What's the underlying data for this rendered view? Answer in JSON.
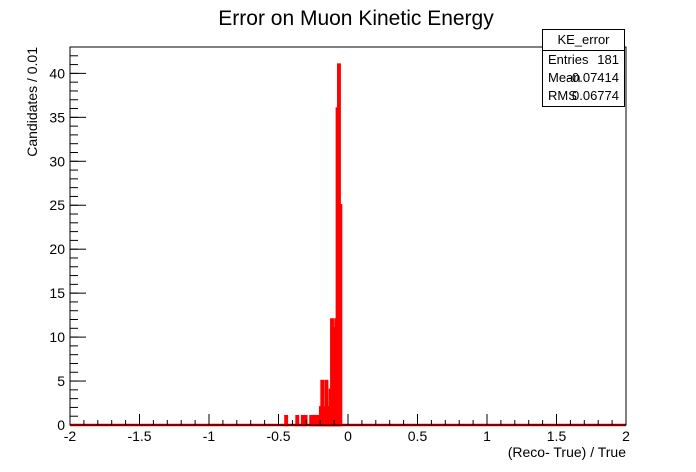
{
  "chart_data": {
    "type": "bar",
    "title": "Error on Muon Kinetic Energy",
    "xlabel": "(Reco- True) / True",
    "ylabel": "Candidates / 0.01",
    "xlim": [
      -2,
      2
    ],
    "ylim": [
      0,
      43
    ],
    "xticks": [
      -2,
      -1.5,
      -1,
      -0.5,
      0,
      0.5,
      1,
      1.5,
      2
    ],
    "xtick_labels": [
      "-2",
      "-1.5",
      "-1",
      "-0.5",
      "0",
      "0.5",
      "1",
      "1.5",
      "2"
    ],
    "yticks": [
      0,
      5,
      10,
      15,
      20,
      25,
      30,
      35,
      40
    ],
    "ytick_labels": [
      "0",
      "5",
      "10",
      "15",
      "20",
      "25",
      "30",
      "35",
      "40"
    ],
    "bin_width": 0.01,
    "series": [
      {
        "name": "KE_error",
        "color": "#ff0000",
        "fill": "hatched",
        "bins": [
          {
            "x": -0.45,
            "y": 1
          },
          {
            "x": -0.37,
            "y": 1
          },
          {
            "x": -0.33,
            "y": 1
          },
          {
            "x": -0.31,
            "y": 1
          },
          {
            "x": -0.27,
            "y": 1
          },
          {
            "x": -0.25,
            "y": 1
          },
          {
            "x": -0.24,
            "y": 1
          },
          {
            "x": -0.23,
            "y": 1
          },
          {
            "x": -0.22,
            "y": 1
          },
          {
            "x": -0.2,
            "y": 2
          },
          {
            "x": -0.19,
            "y": 5
          },
          {
            "x": -0.18,
            "y": 2
          },
          {
            "x": -0.17,
            "y": 1
          },
          {
            "x": -0.16,
            "y": 5
          },
          {
            "x": -0.15,
            "y": 2
          },
          {
            "x": -0.14,
            "y": 2
          },
          {
            "x": -0.13,
            "y": 4
          },
          {
            "x": -0.12,
            "y": 12
          },
          {
            "x": -0.11,
            "y": 11
          },
          {
            "x": -0.1,
            "y": 10
          },
          {
            "x": -0.09,
            "y": 12
          },
          {
            "x": -0.08,
            "y": 36
          },
          {
            "x": -0.07,
            "y": 41
          },
          {
            "x": -0.06,
            "y": 25
          }
        ]
      }
    ]
  },
  "stats": {
    "title": "KE_error",
    "rows": [
      {
        "label": "Entries",
        "value": "181"
      },
      {
        "label": "Mean",
        "value": "-0.07414"
      },
      {
        "label": "RMS",
        "value": "0.06774"
      }
    ]
  }
}
